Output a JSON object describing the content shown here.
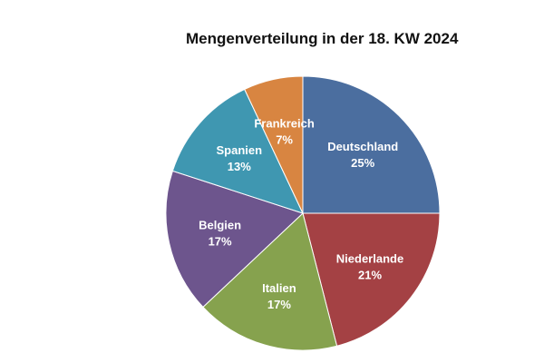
{
  "chart_data": {
    "type": "pie",
    "title": "Mengenverteilung in der 18. KW 2024",
    "slices": [
      {
        "label": "Deutschland",
        "value": 25,
        "value_label": "25%",
        "color": "#4b6e9f"
      },
      {
        "label": "Niederlande",
        "value": 21,
        "value_label": "21%",
        "color": "#a44144"
      },
      {
        "label": "Italien",
        "value": 17,
        "value_label": "17%",
        "color": "#86a24e"
      },
      {
        "label": "Belgien",
        "value": 17,
        "value_label": "17%",
        "color": "#6d558d"
      },
      {
        "label": "Spanien",
        "value": 13,
        "value_label": "13%",
        "color": "#3f97b1"
      },
      {
        "label": "Frankreich",
        "value": 7,
        "value_label": "7%",
        "color": "#d88541"
      }
    ],
    "start_angle": "12 o'clock",
    "direction": "clockwise",
    "legend": "none (labels inside slices)"
  }
}
